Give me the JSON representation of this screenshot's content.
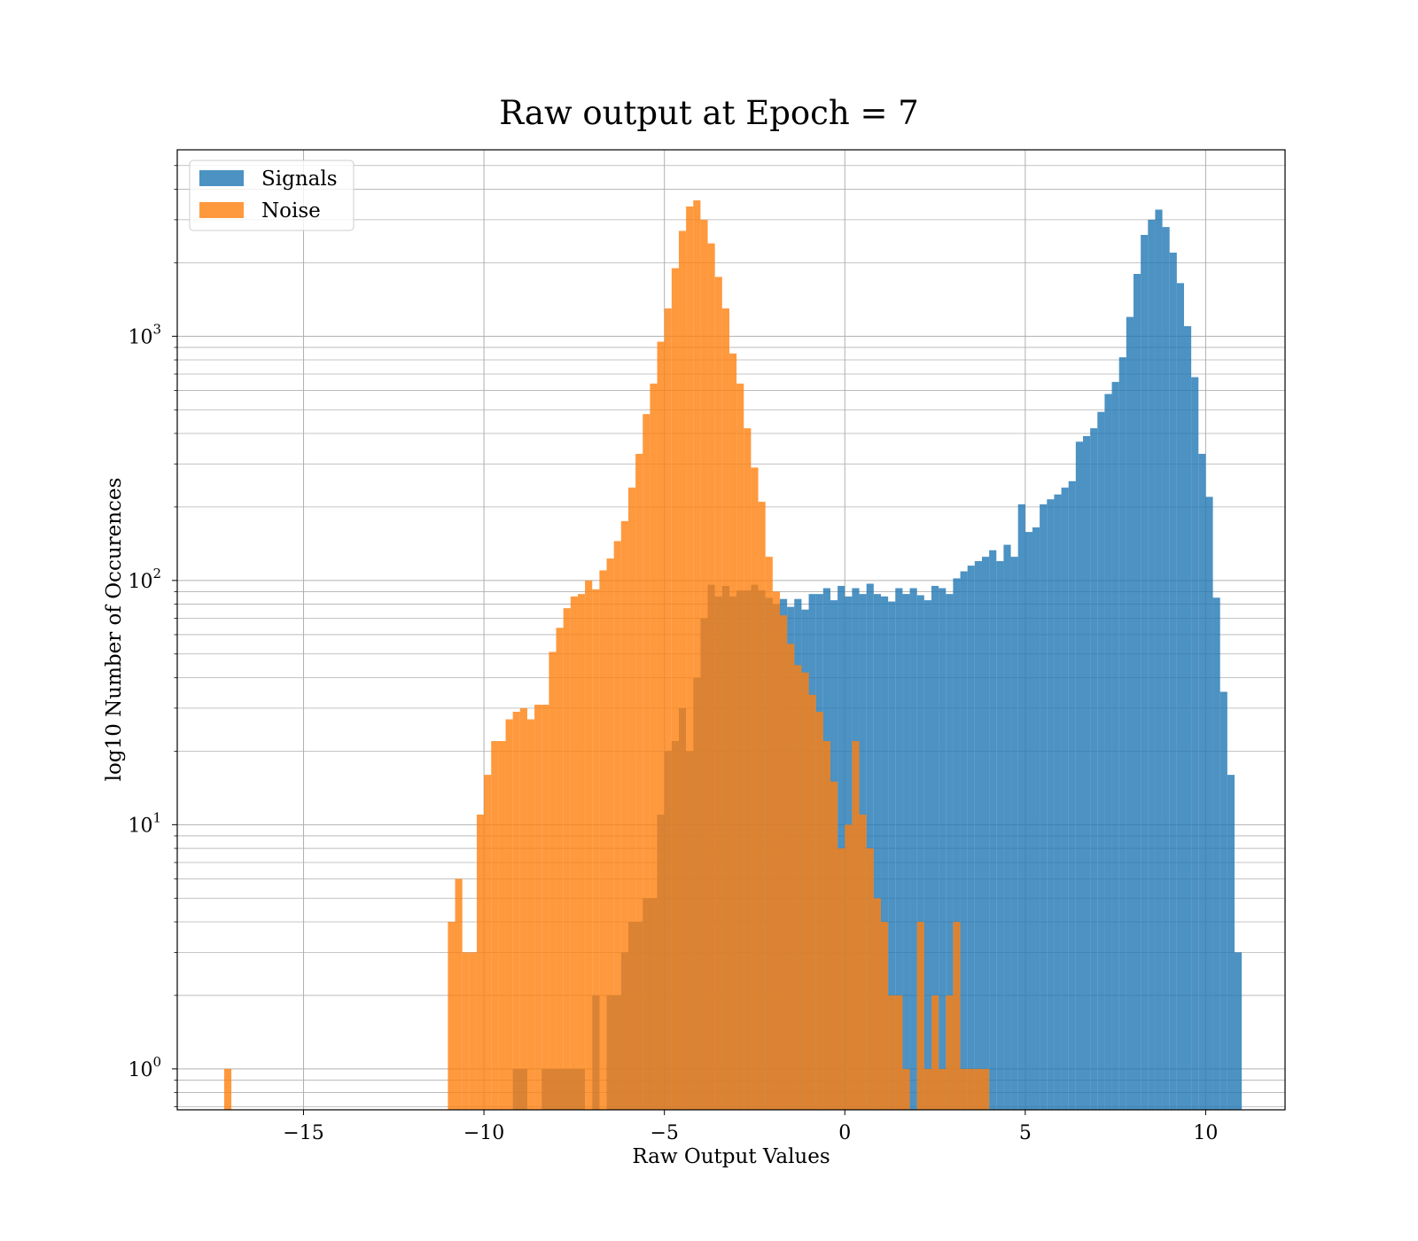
{
  "chart_data": {
    "type": "bar",
    "subtype": "histogram",
    "title": "Raw output at Epoch = 7",
    "xlabel": "Raw Output Values",
    "ylabel": "log10 Number of Occurences",
    "xlim": [
      -18.5,
      12.2
    ],
    "ylim": [
      0.68,
      5800
    ],
    "yscale": "log",
    "grid": true,
    "legend_position": "top-left",
    "x_ticks": [
      {
        "value": -15,
        "label": "−15"
      },
      {
        "value": -10,
        "label": "−10"
      },
      {
        "value": -5,
        "label": "−5"
      },
      {
        "value": 0,
        "label": "0"
      },
      {
        "value": 5,
        "label": "5"
      },
      {
        "value": 10,
        "label": "10"
      }
    ],
    "y_ticks": [
      {
        "value": 1,
        "base": "10",
        "exp": "0"
      },
      {
        "value": 10,
        "base": "10",
        "exp": "1"
      },
      {
        "value": 100,
        "base": "10",
        "exp": "2"
      },
      {
        "value": 1000,
        "base": "10",
        "exp": "3"
      }
    ],
    "series": [
      {
        "name": "Signals",
        "color": "#1f77b4",
        "opacity": 0.8,
        "bins": [
          [
            -9.2,
            -8.8,
            1
          ],
          [
            -8.4,
            -7.2,
            1
          ],
          [
            -7.0,
            -6.8,
            2
          ],
          [
            -6.6,
            -6.2,
            2
          ],
          [
            -6.2,
            -6.0,
            3
          ],
          [
            -6.0,
            -5.6,
            4
          ],
          [
            -5.6,
            -5.2,
            5
          ],
          [
            -5.2,
            -5.0,
            11
          ],
          [
            -5.0,
            -4.8,
            20
          ],
          [
            -4.8,
            -4.6,
            22
          ],
          [
            -4.6,
            -4.4,
            30
          ],
          [
            -4.4,
            -4.2,
            20
          ],
          [
            -4.2,
            -4.0,
            40
          ],
          [
            -4.0,
            -3.8,
            70
          ],
          [
            -3.8,
            -3.6,
            96
          ],
          [
            -3.6,
            -3.4,
            86
          ],
          [
            -3.4,
            -3.2,
            95
          ],
          [
            -3.2,
            -3.0,
            86
          ],
          [
            -3.0,
            -2.8,
            91
          ],
          [
            -2.8,
            -2.6,
            91
          ],
          [
            -2.6,
            -2.4,
            96
          ],
          [
            -2.4,
            -2.2,
            91
          ],
          [
            -2.2,
            -2.0,
            85
          ],
          [
            -2.0,
            -1.8,
            80
          ],
          [
            -1.8,
            -1.6,
            84
          ],
          [
            -1.6,
            -1.4,
            78
          ],
          [
            -1.4,
            -1.2,
            84
          ],
          [
            -1.2,
            -1.0,
            76
          ],
          [
            -1.0,
            -0.8,
            88
          ],
          [
            -0.8,
            -0.6,
            88
          ],
          [
            -0.6,
            -0.4,
            93
          ],
          [
            -0.4,
            -0.2,
            83
          ],
          [
            -0.2,
            0.0,
            95
          ],
          [
            0.0,
            0.2,
            86
          ],
          [
            0.2,
            0.4,
            93
          ],
          [
            0.4,
            0.6,
            88
          ],
          [
            0.6,
            0.8,
            97
          ],
          [
            0.8,
            1.0,
            88
          ],
          [
            1.0,
            1.2,
            86
          ],
          [
            1.2,
            1.4,
            82
          ],
          [
            1.4,
            1.6,
            93
          ],
          [
            1.6,
            1.8,
            88
          ],
          [
            1.8,
            2.0,
            93
          ],
          [
            2.0,
            2.2,
            87
          ],
          [
            2.2,
            2.4,
            83
          ],
          [
            2.4,
            2.6,
            95
          ],
          [
            2.6,
            2.8,
            93
          ],
          [
            2.8,
            3.0,
            88
          ],
          [
            3.0,
            3.2,
            102
          ],
          [
            3.2,
            3.4,
            109
          ],
          [
            3.4,
            3.6,
            115
          ],
          [
            3.6,
            3.8,
            120
          ],
          [
            3.8,
            4.0,
            125
          ],
          [
            4.0,
            4.2,
            133
          ],
          [
            4.2,
            4.4,
            120
          ],
          [
            4.4,
            4.6,
            140
          ],
          [
            4.6,
            4.8,
            125
          ],
          [
            4.8,
            5.0,
            205
          ],
          [
            5.0,
            5.2,
            158
          ],
          [
            5.2,
            5.4,
            165
          ],
          [
            5.4,
            5.6,
            205
          ],
          [
            5.6,
            5.8,
            215
          ],
          [
            5.8,
            6.0,
            225
          ],
          [
            6.0,
            6.2,
            240
          ],
          [
            6.2,
            6.4,
            255
          ],
          [
            6.4,
            6.6,
            370
          ],
          [
            6.6,
            6.8,
            390
          ],
          [
            6.8,
            7.0,
            420
          ],
          [
            7.0,
            7.2,
            490
          ],
          [
            7.2,
            7.4,
            580
          ],
          [
            7.4,
            7.6,
            650
          ],
          [
            7.6,
            7.8,
            820
          ],
          [
            7.8,
            8.0,
            1200
          ],
          [
            8.0,
            8.2,
            1800
          ],
          [
            8.2,
            8.4,
            2600
          ],
          [
            8.4,
            8.6,
            3000
          ],
          [
            8.6,
            8.8,
            3300
          ],
          [
            8.8,
            9.0,
            2800
          ],
          [
            9.0,
            9.2,
            2200
          ],
          [
            9.2,
            9.4,
            1650
          ],
          [
            9.4,
            9.6,
            1100
          ],
          [
            9.6,
            9.8,
            680
          ],
          [
            9.8,
            10.0,
            330
          ],
          [
            10.0,
            10.2,
            220
          ],
          [
            10.2,
            10.4,
            85
          ],
          [
            10.4,
            10.6,
            35
          ],
          [
            10.6,
            10.8,
            16
          ],
          [
            10.8,
            11.0,
            3
          ]
        ]
      },
      {
        "name": "Noise",
        "color": "#ff7f0e",
        "opacity": 0.8,
        "bins": [
          [
            -17.2,
            -17.0,
            1
          ],
          [
            -11.0,
            -10.8,
            4
          ],
          [
            -10.8,
            -10.6,
            6
          ],
          [
            -10.6,
            -10.4,
            3
          ],
          [
            -10.4,
            -10.2,
            3
          ],
          [
            -10.2,
            -10.0,
            11
          ],
          [
            -10.0,
            -9.8,
            16
          ],
          [
            -9.8,
            -9.6,
            22
          ],
          [
            -9.6,
            -9.4,
            22
          ],
          [
            -9.4,
            -9.2,
            27
          ],
          [
            -9.2,
            -9.0,
            29
          ],
          [
            -9.0,
            -8.8,
            30
          ],
          [
            -8.8,
            -8.6,
            27
          ],
          [
            -8.6,
            -8.4,
            31
          ],
          [
            -8.4,
            -8.2,
            31
          ],
          [
            -8.2,
            -8.0,
            51
          ],
          [
            -8.0,
            -7.8,
            64
          ],
          [
            -7.8,
            -7.6,
            77
          ],
          [
            -7.6,
            -7.4,
            86
          ],
          [
            -7.4,
            -7.2,
            88
          ],
          [
            -7.2,
            -7.0,
            100
          ],
          [
            -7.0,
            -6.8,
            92
          ],
          [
            -6.8,
            -6.6,
            110
          ],
          [
            -6.6,
            -6.4,
            123
          ],
          [
            -6.4,
            -6.2,
            145
          ],
          [
            -6.2,
            -6.0,
            175
          ],
          [
            -6.0,
            -5.8,
            240
          ],
          [
            -5.8,
            -5.6,
            330
          ],
          [
            -5.6,
            -5.4,
            480
          ],
          [
            -5.4,
            -5.2,
            640
          ],
          [
            -5.2,
            -5.0,
            950
          ],
          [
            -5.0,
            -4.8,
            1300
          ],
          [
            -4.8,
            -4.6,
            1900
          ],
          [
            -4.6,
            -4.4,
            2700
          ],
          [
            -4.4,
            -4.2,
            3400
          ],
          [
            -4.2,
            -4.0,
            3600
          ],
          [
            -4.0,
            -3.8,
            3000
          ],
          [
            -3.8,
            -3.6,
            2400
          ],
          [
            -3.6,
            -3.4,
            1750
          ],
          [
            -3.4,
            -3.2,
            1300
          ],
          [
            -3.2,
            -3.0,
            850
          ],
          [
            -3.0,
            -2.8,
            640
          ],
          [
            -2.8,
            -2.6,
            420
          ],
          [
            -2.6,
            -2.4,
            290
          ],
          [
            -2.4,
            -2.2,
            210
          ],
          [
            -2.2,
            -2.0,
            125
          ],
          [
            -2.0,
            -1.8,
            90
          ],
          [
            -1.8,
            -1.6,
            72
          ],
          [
            -1.6,
            -1.4,
            55
          ],
          [
            -1.4,
            -1.2,
            45
          ],
          [
            -1.2,
            -1.0,
            42
          ],
          [
            -1.0,
            -0.8,
            34
          ],
          [
            -0.8,
            -0.6,
            29
          ],
          [
            -0.6,
            -0.4,
            22
          ],
          [
            -0.4,
            -0.2,
            15
          ],
          [
            -0.2,
            0.0,
            8
          ],
          [
            0.0,
            0.2,
            10
          ],
          [
            0.2,
            0.4,
            22
          ],
          [
            0.4,
            0.6,
            11
          ],
          [
            0.6,
            0.8,
            8
          ],
          [
            0.8,
            1.0,
            5
          ],
          [
            1.0,
            1.2,
            4
          ],
          [
            1.2,
            1.4,
            2
          ],
          [
            1.4,
            1.6,
            2
          ],
          [
            1.6,
            1.8,
            1
          ],
          [
            2.0,
            2.2,
            4
          ],
          [
            2.2,
            2.4,
            1
          ],
          [
            2.4,
            2.6,
            2
          ],
          [
            2.6,
            2.8,
            1
          ],
          [
            2.8,
            3.0,
            2
          ],
          [
            3.0,
            3.2,
            4
          ],
          [
            3.2,
            3.4,
            1
          ],
          [
            3.4,
            3.6,
            1
          ],
          [
            3.6,
            3.8,
            1
          ],
          [
            3.8,
            4.0,
            1
          ]
        ]
      }
    ]
  }
}
